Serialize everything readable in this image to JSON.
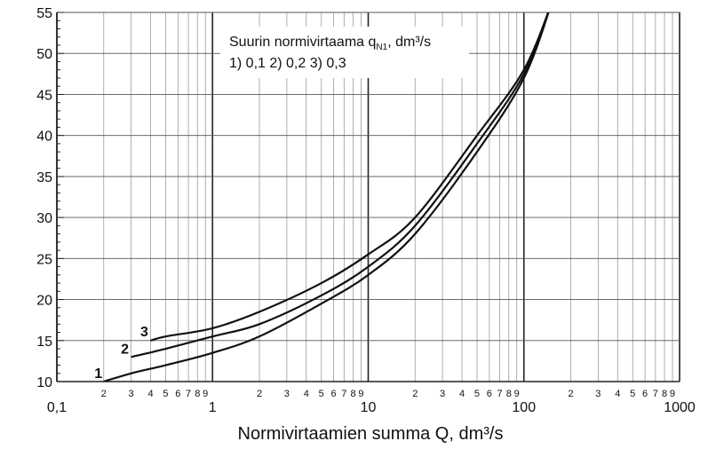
{
  "chart_data": {
    "type": "line",
    "xscale": "log",
    "xlim": [
      0.1,
      1000
    ],
    "ylim": [
      10,
      55
    ],
    "grid": true,
    "xlabel": "Normivirtaamien summa Q, dm³/s",
    "ylabel": "",
    "legend": {
      "placement": "top-center",
      "line1": "Suurin normivirtaama q",
      "line1_sub": "N1",
      "line1_tail": ", dm³/s",
      "line2": "1) 0,1  2) 0,2  3) 0,3"
    },
    "major_ticks": [
      {
        "value": 0.1,
        "label": "0,1"
      },
      {
        "value": 1,
        "label": "1"
      },
      {
        "value": 10,
        "label": "10"
      },
      {
        "value": 100,
        "label": "100"
      },
      {
        "value": 1000,
        "label": "1000"
      }
    ],
    "minor_tick_labels": [
      "2",
      "3",
      "4",
      "5",
      "6",
      "7",
      "8",
      "9"
    ],
    "y_ticks": [
      10,
      15,
      20,
      25,
      30,
      35,
      40,
      45,
      50,
      55
    ],
    "series": [
      {
        "name": "1",
        "x": [
          0.2,
          0.3,
          0.5,
          1,
          2,
          5,
          10,
          20,
          50,
          100,
          150
        ],
        "y": [
          10,
          11,
          12,
          13.5,
          15.5,
          19.5,
          23,
          28,
          38,
          47,
          56
        ]
      },
      {
        "name": "2",
        "x": [
          0.3,
          0.5,
          1,
          2,
          5,
          10,
          20,
          50,
          100,
          150
        ],
        "y": [
          13,
          14,
          15.5,
          17,
          20.5,
          24,
          29,
          39,
          47.5,
          56
        ]
      },
      {
        "name": "3",
        "x": [
          0.4,
          0.5,
          1,
          2,
          5,
          10,
          20,
          50,
          100,
          150
        ],
        "y": [
          15,
          15.5,
          16.5,
          18.5,
          22,
          25.5,
          30,
          40,
          48,
          56
        ]
      }
    ]
  }
}
